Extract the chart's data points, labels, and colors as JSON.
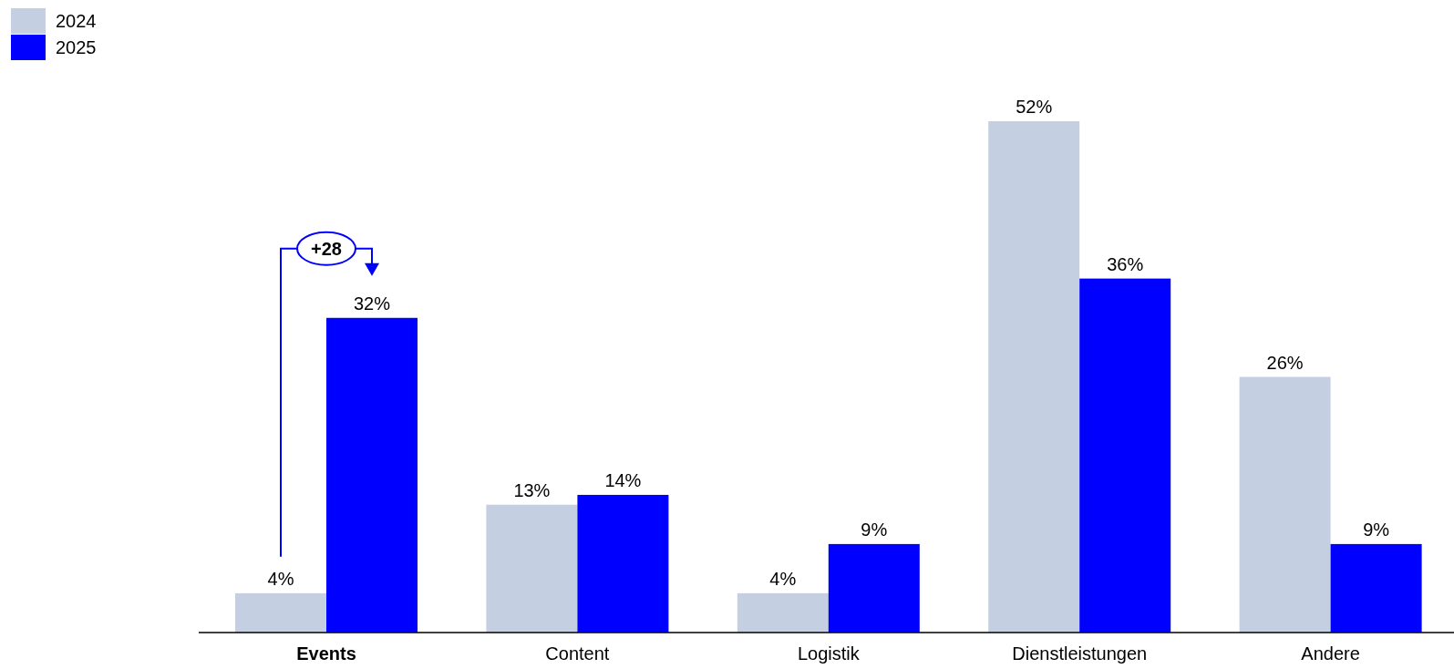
{
  "chart_data": {
    "type": "bar",
    "categories": [
      "Events",
      "Content",
      "Logistik",
      "Dienstleistungen",
      "Andere"
    ],
    "series": [
      {
        "name": "2024",
        "color": "#c5cfe2",
        "values": [
          4,
          13,
          4,
          52,
          26
        ],
        "value_labels": [
          "4%",
          "13%",
          "4%",
          "52%",
          "26%"
        ]
      },
      {
        "name": "2025",
        "color": "#0000ff",
        "values": [
          32,
          14,
          9,
          36,
          9
        ],
        "value_labels": [
          "32%",
          "14%",
          "9%",
          "36%",
          "9%"
        ]
      }
    ],
    "legend": "top left",
    "annotations": [
      "+28"
    ]
  }
}
